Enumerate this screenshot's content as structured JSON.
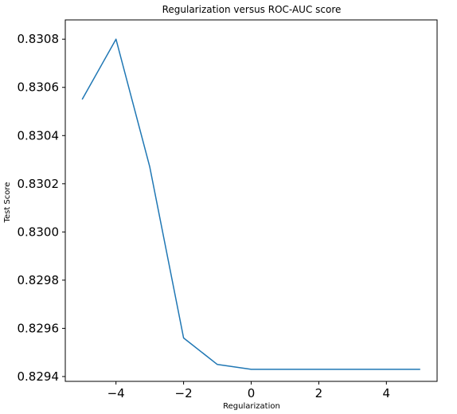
{
  "chart_data": {
    "type": "line",
    "title": "Regularization versus ROC-AUC score",
    "xlabel": "Regularization",
    "ylabel": "Test Score",
    "xlim": [
      -5.5,
      5.5
    ],
    "ylim": [
      0.82938,
      0.83088
    ],
    "xticks": [
      -4,
      -2,
      0,
      2,
      4
    ],
    "xtick_labels": [
      "−4",
      "−2",
      "0",
      "2",
      "4"
    ],
    "yticks": [
      0.8294,
      0.8296,
      0.8298,
      0.83,
      0.8302,
      0.8304,
      0.8306,
      0.8308
    ],
    "ytick_labels": [
      "0.8294",
      "0.8296",
      "0.8298",
      "0.8300",
      "0.8302",
      "0.8304",
      "0.8306",
      "0.8308"
    ],
    "grid": false,
    "series": [
      {
        "color": "#1f77b4",
        "x": [
          -5,
          -4,
          -3,
          -2,
          -1,
          0,
          1,
          2,
          3,
          4,
          5
        ],
        "y": [
          0.83055,
          0.8308,
          0.83027,
          0.82956,
          0.82945,
          0.82943,
          0.82943,
          0.82943,
          0.82943,
          0.82943,
          0.82943
        ]
      }
    ]
  }
}
